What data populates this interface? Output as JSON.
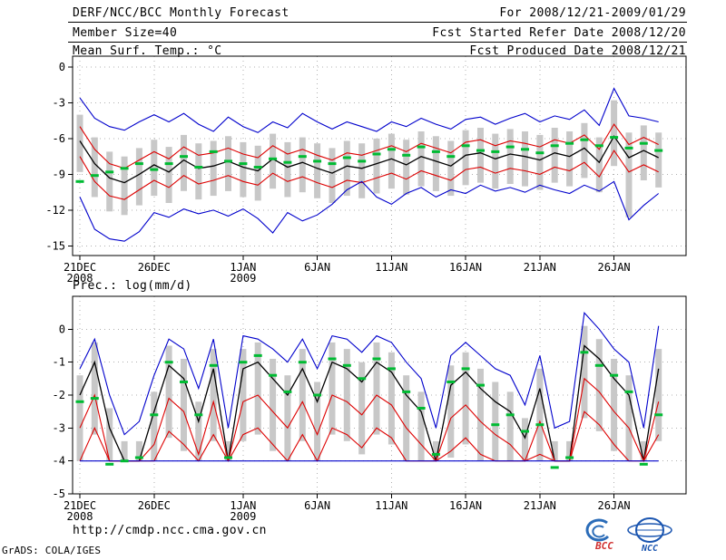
{
  "header": {
    "title": "DERF/NCC/BCC Monthly Forecast",
    "member_size": "Member Size=40",
    "for_range": "For 2008/12/21-2009/01/29",
    "fcst_started": "Fcst Started Refer Date 2008/12/20",
    "fcst_produced": "Fcst Produced Date 2008/12/21"
  },
  "footer": {
    "url": "http://cmdp.ncc.cma.gov.cn",
    "credit": "GrADS: COLA/IGES",
    "bcc_logo_label": "BCC",
    "ncc_logo_label": "NCC"
  },
  "colors": {
    "blue": "#0000cc",
    "red": "#dd0000",
    "black": "#000000",
    "green": "#00bb33",
    "bar": "#c8c8c8",
    "grid": "#b0b0b0"
  },
  "chart_data": [
    {
      "type": "line",
      "title": "Mean Surf. Temp.: °C",
      "ylim": [
        -15.8,
        0.9
      ],
      "yticks": [
        0,
        -3,
        -6,
        -9,
        -12,
        -15
      ],
      "xticks": [
        {
          "day": 0,
          "label": "21DEC",
          "sub": "2008"
        },
        {
          "day": 5,
          "label": "26DEC"
        },
        {
          "day": 11,
          "label": "1JAN",
          "sub": "2009"
        },
        {
          "day": 16,
          "label": "6JAN"
        },
        {
          "day": 21,
          "label": "11JAN"
        },
        {
          "day": 26,
          "label": "16JAN"
        },
        {
          "day": 31,
          "label": "21JAN"
        },
        {
          "day": 36,
          "label": "26JAN"
        }
      ],
      "n_points": 40,
      "series": [
        {
          "name": "blue-upper",
          "color": "blue",
          "values": [
            -2.6,
            -4.3,
            -5.0,
            -5.3,
            -4.6,
            -4.0,
            -4.6,
            -3.9,
            -4.8,
            -5.4,
            -4.2,
            -5.0,
            -5.5,
            -4.6,
            -5.1,
            -3.9,
            -4.6,
            -5.2,
            -4.6,
            -5.0,
            -5.4,
            -4.6,
            -5.0,
            -4.3,
            -4.8,
            -5.2,
            -4.4,
            -4.2,
            -4.8,
            -4.3,
            -3.9,
            -4.6,
            -4.1,
            -4.4,
            -3.6,
            -4.9,
            -1.8,
            -4.1,
            -4.3,
            -4.6
          ]
        },
        {
          "name": "red-upper",
          "color": "red",
          "values": [
            -5.0,
            -6.9,
            -8.1,
            -8.5,
            -7.8,
            -7.1,
            -7.7,
            -6.7,
            -7.4,
            -7.2,
            -6.8,
            -7.3,
            -7.6,
            -6.6,
            -7.3,
            -6.9,
            -7.4,
            -7.8,
            -7.2,
            -7.4,
            -7.0,
            -6.6,
            -7.1,
            -6.4,
            -6.8,
            -7.2,
            -6.3,
            -6.1,
            -6.6,
            -6.2,
            -6.4,
            -6.7,
            -6.1,
            -6.4,
            -5.7,
            -6.9,
            -4.8,
            -6.5,
            -5.9,
            -6.5
          ]
        },
        {
          "name": "black-middle",
          "color": "black",
          "values": [
            -6.2,
            -8.1,
            -9.3,
            -9.7,
            -9.0,
            -8.2,
            -8.8,
            -7.8,
            -8.5,
            -8.3,
            -7.9,
            -8.4,
            -8.7,
            -7.7,
            -8.4,
            -8.0,
            -8.5,
            -8.9,
            -8.3,
            -8.5,
            -8.1,
            -7.7,
            -8.2,
            -7.5,
            -7.9,
            -8.3,
            -7.4,
            -7.2,
            -7.7,
            -7.3,
            -7.5,
            -7.8,
            -7.2,
            -7.5,
            -6.8,
            -8.0,
            -5.8,
            -7.6,
            -7.0,
            -7.6
          ]
        },
        {
          "name": "red-lower",
          "color": "red",
          "values": [
            -7.5,
            -9.6,
            -10.8,
            -11.1,
            -10.3,
            -9.5,
            -10.1,
            -9.1,
            -9.8,
            -9.5,
            -9.1,
            -9.6,
            -9.9,
            -8.9,
            -9.6,
            -9.2,
            -9.7,
            -10.1,
            -9.5,
            -9.7,
            -9.3,
            -8.9,
            -9.4,
            -8.7,
            -9.1,
            -9.5,
            -8.6,
            -8.4,
            -8.9,
            -8.5,
            -8.7,
            -9.0,
            -8.4,
            -8.7,
            -8.0,
            -9.2,
            -7.0,
            -8.8,
            -8.2,
            -8.8
          ]
        },
        {
          "name": "blue-lower",
          "color": "blue",
          "values": [
            -10.9,
            -13.6,
            -14.4,
            -14.6,
            -13.8,
            -12.2,
            -12.6,
            -11.9,
            -12.3,
            -12.0,
            -12.5,
            -11.9,
            -12.7,
            -13.9,
            -12.2,
            -12.9,
            -12.4,
            -11.5,
            -10.3,
            -9.6,
            -10.9,
            -11.5,
            -10.6,
            -10.1,
            -10.9,
            -10.3,
            -10.6,
            -9.9,
            -10.4,
            -10.1,
            -10.5,
            -9.9,
            -10.3,
            -10.6,
            -9.9,
            -10.4,
            -9.6,
            -12.8,
            -11.6,
            -10.6
          ]
        }
      ],
      "obs_dashes": {
        "name": "green-dashes",
        "color": "green",
        "values": [
          -9.6,
          -9.1,
          -8.8,
          -8.5,
          -8.1,
          -8.6,
          -8.1,
          -7.5,
          -8.4,
          -7.1,
          -7.9,
          -8.1,
          -8.4,
          -7.7,
          -8.0,
          -7.5,
          -7.9,
          -8.1,
          -7.6,
          -7.9,
          -7.3,
          -6.9,
          -7.4,
          -6.7,
          -7.1,
          -7.5,
          -6.6,
          -7.0,
          -7.1,
          -6.7,
          -6.9,
          -7.2,
          -6.6,
          -6.4,
          -6.1,
          -6.6,
          -5.9,
          -6.8,
          -6.4,
          -7.0
        ]
      },
      "bars": {
        "high": [
          -4.0,
          -5.9,
          -7.1,
          -7.5,
          -6.8,
          -6.1,
          -6.7,
          -5.7,
          -6.4,
          -6.2,
          -5.8,
          -6.3,
          -6.6,
          -5.6,
          -6.3,
          -5.9,
          -6.4,
          -6.8,
          -6.2,
          -6.4,
          -6.0,
          -5.6,
          -6.1,
          -5.4,
          -5.8,
          -6.2,
          -5.3,
          -5.1,
          -5.6,
          -5.2,
          -5.4,
          -5.7,
          -5.1,
          -5.4,
          -4.7,
          -5.9,
          -2.8,
          -5.5,
          -4.9,
          -5.5
        ],
        "low": [
          -8.8,
          -10.9,
          -12.1,
          -12.4,
          -11.6,
          -10.8,
          -11.4,
          -10.4,
          -11.1,
          -10.8,
          -10.4,
          -10.9,
          -11.2,
          -10.2,
          -10.9,
          -10.5,
          -11.0,
          -11.4,
          -10.8,
          -11.0,
          -10.6,
          -10.2,
          -10.7,
          -10.0,
          -10.4,
          -10.8,
          -9.9,
          -9.7,
          -10.2,
          -9.8,
          -10.0,
          -10.3,
          -9.7,
          -10.0,
          -9.3,
          -10.5,
          -8.3,
          -12.6,
          -9.5,
          -10.1
        ]
      }
    },
    {
      "type": "line",
      "title": "Prec.: log(mm/d)",
      "ylim": [
        -5.0,
        1.0
      ],
      "yticks": [
        0,
        -1,
        -2,
        -3,
        -4,
        -5
      ],
      "xticks": [
        {
          "day": 0,
          "label": "21DEC",
          "sub": "2008"
        },
        {
          "day": 5,
          "label": "26DEC"
        },
        {
          "day": 11,
          "label": "1JAN",
          "sub": "2009"
        },
        {
          "day": 16,
          "label": "6JAN"
        },
        {
          "day": 21,
          "label": "11JAN"
        },
        {
          "day": 26,
          "label": "16JAN"
        },
        {
          "day": 31,
          "label": "21JAN"
        },
        {
          "day": 36,
          "label": "26JAN"
        }
      ],
      "n_points": 40,
      "series": [
        {
          "name": "blue-upper",
          "color": "blue",
          "values": [
            -1.2,
            -0.3,
            -2.0,
            -3.2,
            -2.8,
            -1.4,
            -0.3,
            -0.6,
            -1.8,
            -0.3,
            -3.0,
            -0.2,
            -0.3,
            -0.6,
            -1.0,
            -0.3,
            -1.2,
            -0.2,
            -0.3,
            -0.7,
            -0.2,
            -0.4,
            -1.0,
            -1.5,
            -3.0,
            -0.8,
            -0.4,
            -0.8,
            -1.2,
            -1.4,
            -2.3,
            -0.8,
            -3.0,
            -2.8,
            0.5,
            0.0,
            -0.6,
            -1.0,
            -3.0,
            0.1
          ]
        },
        {
          "name": "black-middle",
          "color": "black",
          "values": [
            -2.0,
            -1.0,
            -3.0,
            -4.0,
            -4.0,
            -2.5,
            -1.1,
            -1.5,
            -2.8,
            -1.2,
            -4.0,
            -1.2,
            -1.0,
            -1.5,
            -2.0,
            -1.2,
            -2.2,
            -1.0,
            -1.2,
            -1.6,
            -1.0,
            -1.3,
            -2.0,
            -2.5,
            -4.0,
            -1.7,
            -1.3,
            -1.8,
            -2.2,
            -2.5,
            -3.3,
            -1.8,
            -4.0,
            -4.0,
            -0.5,
            -0.9,
            -1.5,
            -2.0,
            -4.0,
            -1.2
          ]
        },
        {
          "name": "red-mid",
          "color": "red",
          "values": [
            -3.0,
            -2.0,
            -4.0,
            -4.0,
            -4.0,
            -3.5,
            -2.1,
            -2.5,
            -3.8,
            -2.2,
            -4.0,
            -2.2,
            -2.0,
            -2.5,
            -3.0,
            -2.2,
            -3.2,
            -2.0,
            -2.2,
            -2.6,
            -2.0,
            -2.3,
            -3.0,
            -3.5,
            -4.0,
            -2.7,
            -2.3,
            -2.8,
            -3.2,
            -3.5,
            -4.0,
            -2.8,
            -4.0,
            -4.0,
            -1.5,
            -1.9,
            -2.5,
            -3.0,
            -4.0,
            -2.2
          ]
        },
        {
          "name": "red-lower",
          "color": "red",
          "values": [
            -4.0,
            -3.0,
            -4.0,
            -4.0,
            -4.0,
            -4.0,
            -3.1,
            -3.5,
            -4.0,
            -3.2,
            -4.0,
            -3.2,
            -3.0,
            -3.5,
            -4.0,
            -3.2,
            -4.0,
            -3.0,
            -3.2,
            -3.6,
            -3.0,
            -3.3,
            -4.0,
            -4.0,
            -4.0,
            -3.7,
            -3.3,
            -3.8,
            -4.0,
            -4.0,
            -4.0,
            -3.8,
            -4.0,
            -4.0,
            -2.5,
            -2.9,
            -3.5,
            -4.0,
            -4.0,
            -3.2
          ]
        },
        {
          "name": "blue-floor",
          "color": "blue",
          "values": [
            -4.0,
            -4.0,
            -4.0,
            -4.0,
            -4.0,
            -4.0,
            -4.0,
            -4.0,
            -4.0,
            -4.0,
            -4.0,
            -4.0,
            -4.0,
            -4.0,
            -4.0,
            -4.0,
            -4.0,
            -4.0,
            -4.0,
            -4.0,
            -4.0,
            -4.0,
            -4.0,
            -4.0,
            -4.0,
            -4.0,
            -4.0,
            -4.0,
            -4.0,
            -4.0,
            -4.0,
            -4.0,
            -4.0,
            -4.0,
            -4.0,
            -4.0,
            -4.0,
            -4.0,
            -4.0,
            -4.0
          ]
        }
      ],
      "obs_dashes": {
        "name": "green-dashes",
        "color": "green",
        "values": [
          -2.2,
          -2.1,
          -4.1,
          -4.0,
          -3.9,
          -2.6,
          -1.0,
          -1.6,
          -2.6,
          -1.1,
          -3.9,
          -1.0,
          -0.8,
          -1.4,
          -1.9,
          -1.0,
          -2.0,
          -0.9,
          -1.1,
          -1.5,
          -0.9,
          -1.2,
          -1.9,
          -2.4,
          -3.8,
          -1.6,
          -1.2,
          -1.7,
          -2.9,
          -2.6,
          -3.1,
          -2.9,
          -4.2,
          -3.9,
          -0.7,
          -1.1,
          -1.4,
          -1.9,
          -4.1,
          -2.6
        ]
      },
      "bars": {
        "high": [
          -1.4,
          -0.4,
          -2.4,
          -3.4,
          -3.4,
          -1.9,
          -0.5,
          -0.9,
          -2.2,
          -0.6,
          -3.4,
          -0.6,
          -0.4,
          -0.9,
          -1.4,
          -0.6,
          -1.6,
          -0.4,
          -0.6,
          -1.0,
          -0.4,
          -0.7,
          -1.4,
          -1.9,
          -3.4,
          -1.1,
          -0.7,
          -1.2,
          -1.6,
          -1.9,
          -2.7,
          -1.2,
          -3.4,
          -3.4,
          0.1,
          -0.3,
          -0.9,
          -1.4,
          -3.4,
          -0.6
        ],
        "low": [
          -4.0,
          -3.2,
          -4.0,
          -4.0,
          -4.0,
          -4.0,
          -3.3,
          -3.7,
          -4.0,
          -3.4,
          -4.0,
          -3.4,
          -3.2,
          -3.7,
          -4.0,
          -3.4,
          -4.0,
          -3.2,
          -3.4,
          -3.8,
          -3.2,
          -3.5,
          -4.0,
          -4.0,
          -4.0,
          -3.9,
          -3.5,
          -4.0,
          -4.0,
          -4.0,
          -4.0,
          -4.0,
          -4.0,
          -4.0,
          -2.7,
          -3.1,
          -3.7,
          -4.0,
          -4.0,
          -3.4
        ]
      }
    }
  ]
}
